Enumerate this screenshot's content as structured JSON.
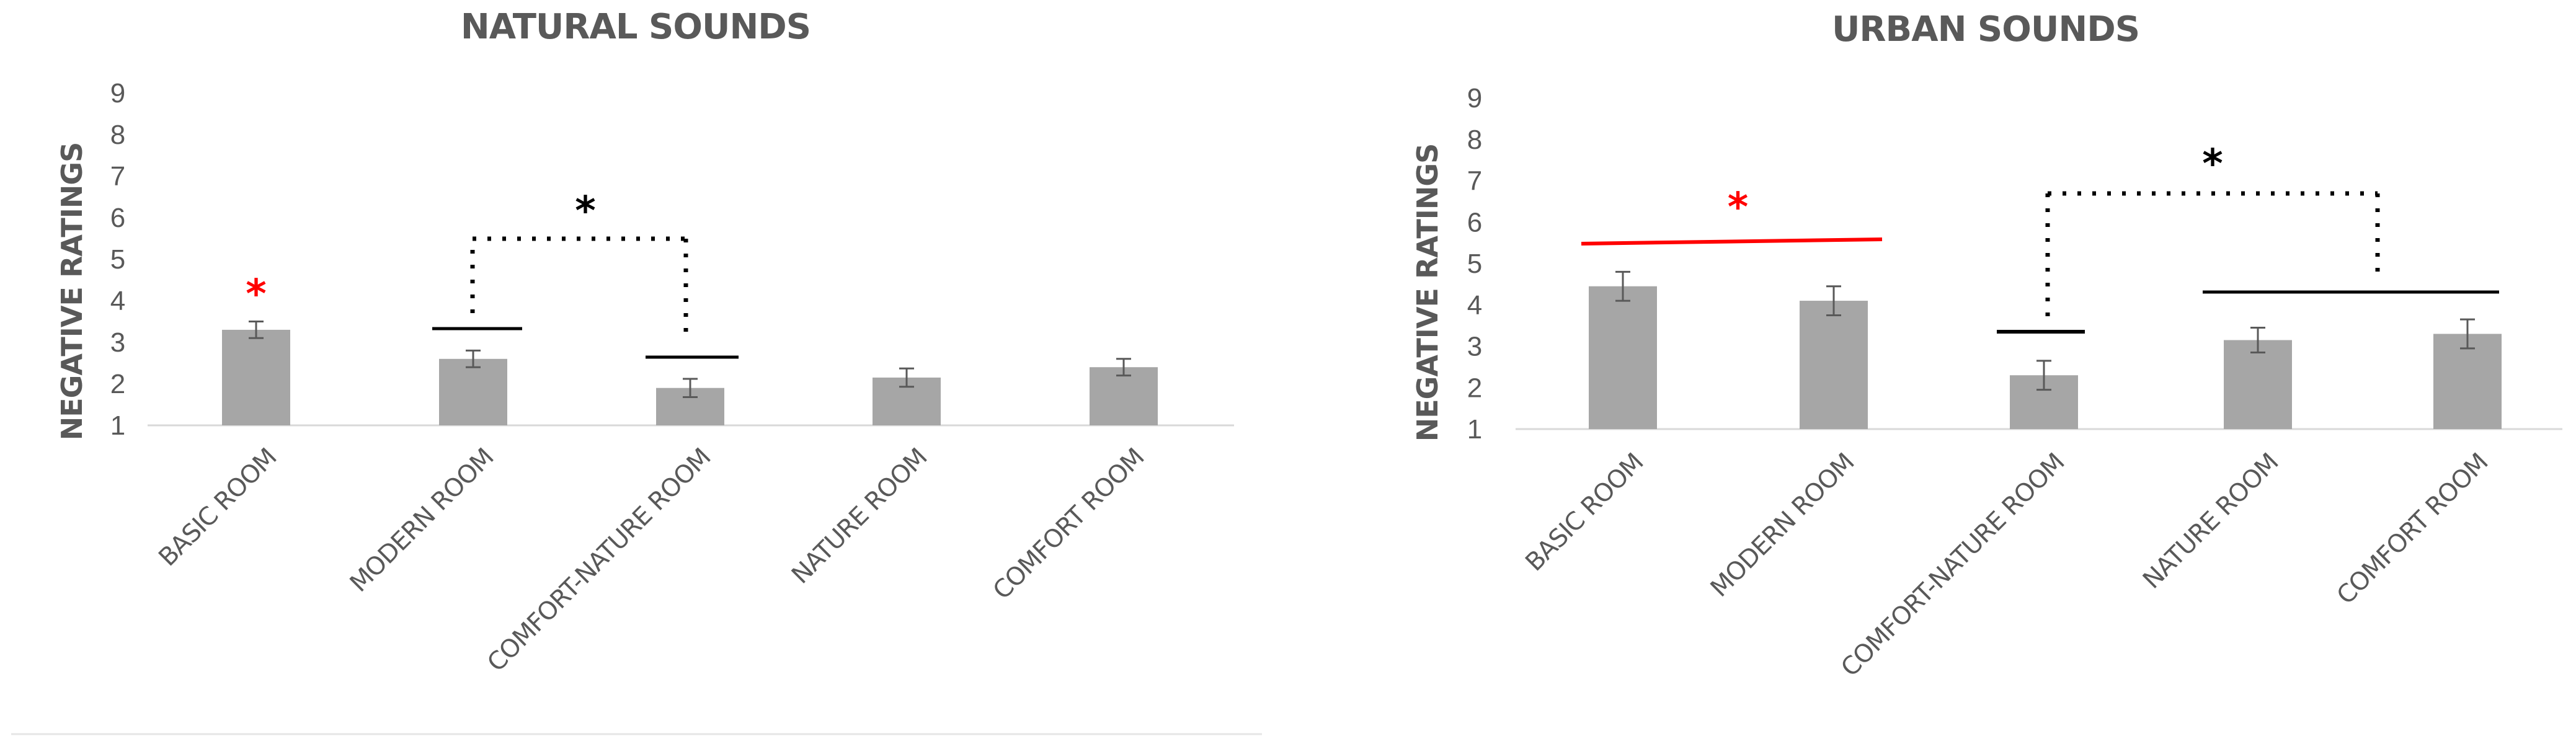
{
  "chart_data": [
    {
      "type": "bar",
      "title": "NATURAL SOUNDS",
      "ylabel": "NEGATIVE RATINGS",
      "xlabel": "",
      "ylim": [
        1,
        9
      ],
      "yticks": [
        "1",
        "2",
        "3",
        "4",
        "5",
        "6",
        "7",
        "8",
        "9"
      ],
      "categories": [
        "BASIC ROOM",
        "MODERN ROOM",
        "COMFORT-NATURE ROOM",
        "NATURE ROOM",
        "COMFORT ROOM"
      ],
      "values": [
        3.3,
        2.6,
        1.9,
        2.15,
        2.4
      ],
      "errors": [
        0.2,
        0.2,
        0.22,
        0.22,
        0.2
      ],
      "bar_color": "#a6a6a6",
      "grid": false,
      "annotations": [
        {
          "kind": "star",
          "text": "*",
          "color": "#ff0000",
          "category": 0
        },
        {
          "kind": "bracket",
          "text": "*",
          "color": "#000000",
          "from": 1,
          "to": 2
        }
      ]
    },
    {
      "type": "bar",
      "title": "URBAN SOUNDS",
      "ylabel": "NEGATIVE RATINGS",
      "xlabel": "",
      "ylim": [
        1,
        9
      ],
      "yticks": [
        "1",
        "2",
        "3",
        "4",
        "5",
        "6",
        "7",
        "8",
        "9"
      ],
      "categories": [
        "BASIC ROOM",
        "MODERN ROOM",
        "COMFORT-NATURE ROOM",
        "NATURE ROOM",
        "COMFORT ROOM"
      ],
      "values": [
        4.45,
        4.1,
        2.3,
        3.15,
        3.3
      ],
      "errors": [
        0.35,
        0.35,
        0.35,
        0.3,
        0.35
      ],
      "bar_color": "#a6a6a6",
      "grid": false,
      "annotations": [
        {
          "kind": "group-line",
          "text": "*",
          "color": "#ff0000",
          "from": 0,
          "to": 1
        },
        {
          "kind": "bracket",
          "text": "*",
          "color": "#000000",
          "from": 2,
          "to": 4
        }
      ]
    }
  ]
}
